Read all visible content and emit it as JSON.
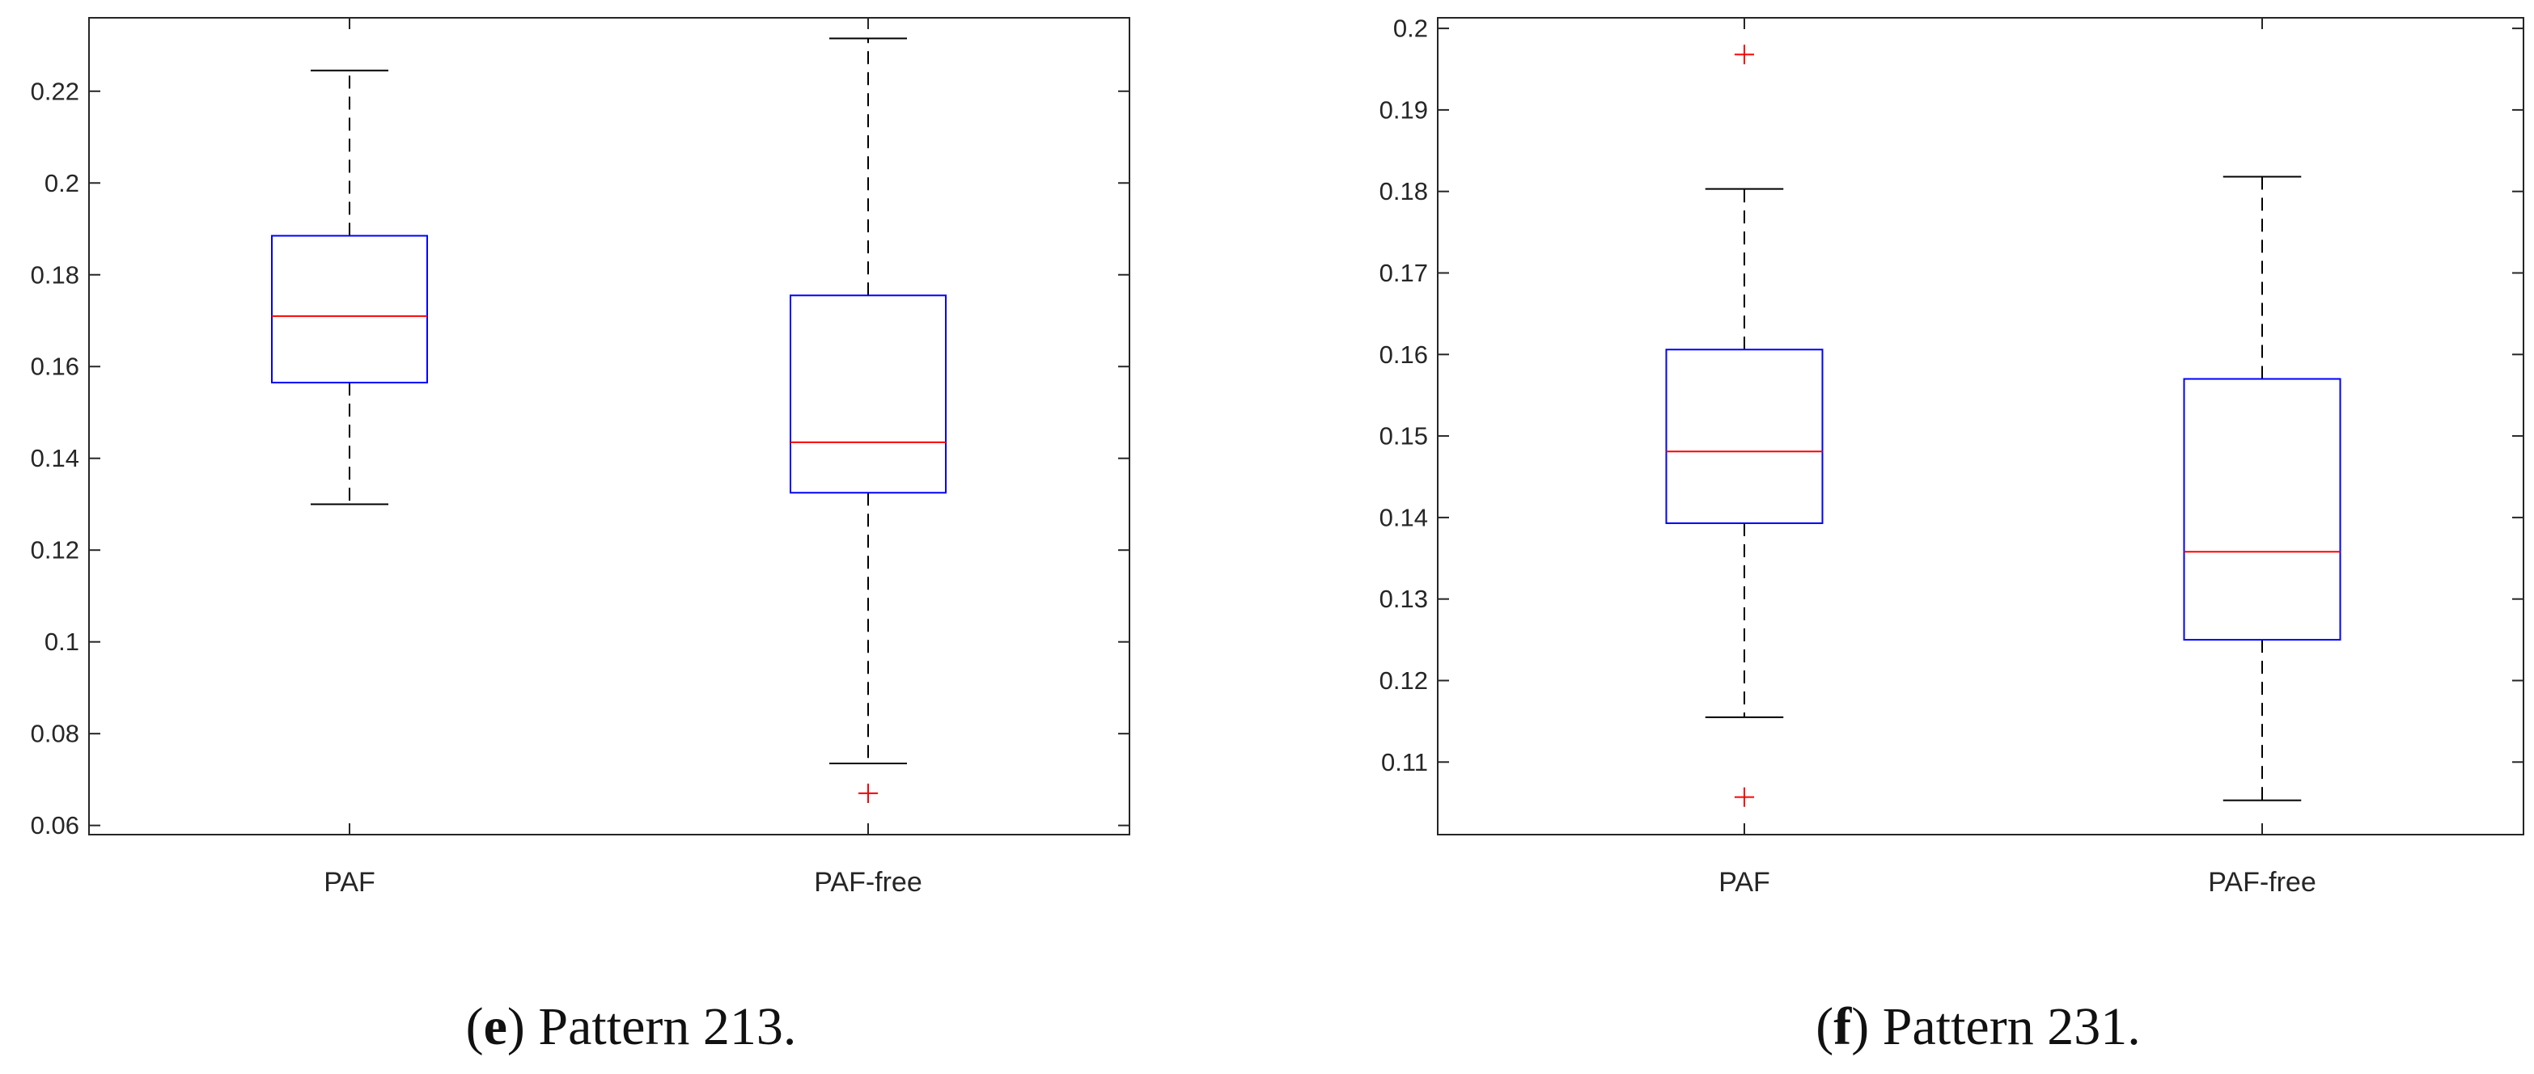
{
  "chart_data": [
    {
      "type": "box",
      "caption": {
        "letter": "e",
        "prefix": "(",
        "suffix": ") Pattern 213."
      },
      "categories": [
        "PAF",
        "PAF-free"
      ],
      "ylim": [
        0.058,
        0.236
      ],
      "yticks": [
        0.06,
        0.08,
        0.1,
        0.12,
        0.14,
        0.16,
        0.18,
        0.2,
        0.22
      ],
      "ytick_labels": [
        "0.06",
        "0.08",
        "0.1",
        "0.12",
        "0.14",
        "0.16",
        "0.18",
        "0.2",
        "0.22"
      ],
      "boxes": [
        {
          "category": "PAF",
          "whisker_low": 0.13,
          "q1": 0.1565,
          "median": 0.171,
          "q3": 0.1885,
          "whisker_high": 0.2245,
          "outliers": []
        },
        {
          "category": "PAF-free",
          "whisker_low": 0.0735,
          "q1": 0.1325,
          "median": 0.1435,
          "q3": 0.1755,
          "whisker_high": 0.2315,
          "outliers": [
            0.067
          ]
        }
      ],
      "colors": {
        "box": "#0000ff",
        "median": "#ff0000",
        "whisker": "#000000",
        "outlier": "#ff0000"
      }
    },
    {
      "type": "box",
      "caption": {
        "letter": "f",
        "prefix": "(",
        "suffix": ") Pattern 231."
      },
      "categories": [
        "PAF",
        "PAF-free"
      ],
      "ylim": [
        0.1011,
        0.2013
      ],
      "yticks": [
        0.11,
        0.12,
        0.13,
        0.14,
        0.15,
        0.16,
        0.17,
        0.18,
        0.19,
        0.2
      ],
      "ytick_labels": [
        "0.11",
        "0.12",
        "0.13",
        "0.14",
        "0.15",
        "0.16",
        "0.17",
        "0.18",
        "0.19",
        "0.2"
      ],
      "boxes": [
        {
          "category": "PAF",
          "whisker_low": 0.1155,
          "q1": 0.1393,
          "median": 0.1481,
          "q3": 0.1606,
          "whisker_high": 0.1803,
          "outliers": [
            0.1968,
            0.1057
          ]
        },
        {
          "category": "PAF-free",
          "whisker_low": 0.1053,
          "q1": 0.125,
          "median": 0.1358,
          "q3": 0.157,
          "whisker_high": 0.1818,
          "outliers": []
        }
      ],
      "colors": {
        "box": "#0000ff",
        "median": "#ff0000",
        "whisker": "#000000",
        "outlier": "#ff0000"
      }
    }
  ]
}
